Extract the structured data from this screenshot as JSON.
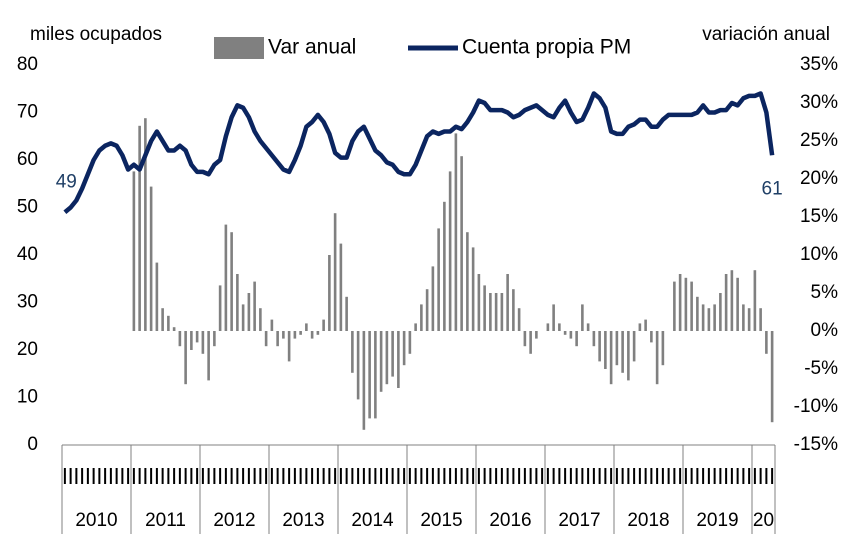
{
  "chart_data": {
    "type": "bar-line",
    "y_label": "miles ocupados",
    "y2_label": "variación anual",
    "ylim": [
      0,
      80
    ],
    "yticks": [
      0,
      10,
      20,
      30,
      40,
      50,
      60,
      70,
      80
    ],
    "y2lim": [
      -15,
      35
    ],
    "y2ticks": [
      {
        "value": -15,
        "label": "-15%"
      },
      {
        "value": -10,
        "label": "-10%"
      },
      {
        "value": -5,
        "label": "-5%"
      },
      {
        "value": 0,
        "label": "0%"
      },
      {
        "value": 5,
        "label": "5%"
      },
      {
        "value": 10,
        "label": "10%"
      },
      {
        "value": 15,
        "label": "15%"
      },
      {
        "value": 20,
        "label": "20%"
      },
      {
        "value": 25,
        "label": "25%"
      },
      {
        "value": 30,
        "label": "30%"
      },
      {
        "value": 35,
        "label": "35%"
      }
    ],
    "groups": [
      {
        "label": "2010",
        "span": 12
      },
      {
        "label": "2011",
        "span": 12
      },
      {
        "label": "2012",
        "span": 12
      },
      {
        "label": "2013",
        "span": 12
      },
      {
        "label": "2014",
        "span": 12
      },
      {
        "label": "2015",
        "span": 12
      },
      {
        "label": "2016",
        "span": 12
      },
      {
        "label": "2017",
        "span": 12
      },
      {
        "label": "2018",
        "span": 12
      },
      {
        "label": "2019",
        "span": 12
      },
      {
        "label": "20",
        "span": 4
      }
    ],
    "label_ends": true,
    "series": [
      {
        "name": "Var anual",
        "type": "bar",
        "axis": "y2",
        "color": "#808080",
        "values": [
          null,
          null,
          null,
          null,
          null,
          null,
          null,
          null,
          null,
          null,
          null,
          null,
          21,
          27,
          28,
          19,
          9,
          3,
          2,
          0.5,
          -2,
          -7,
          -2.5,
          -1.5,
          -3,
          -6.5,
          -2,
          6,
          14,
          13,
          7.5,
          3.5,
          5,
          6.5,
          3,
          -2,
          1.5,
          -2,
          -1,
          -4,
          -1,
          -0.5,
          1,
          -1,
          -0.5,
          1.5,
          10,
          15.5,
          11.5,
          4.5,
          -5.5,
          -9,
          -13,
          -11.5,
          -11.5,
          -8,
          -7,
          -6,
          -7.5,
          -4.5,
          -3,
          1,
          3.5,
          5.5,
          8.5,
          13.5,
          17,
          21,
          26,
          23,
          13,
          11,
          7.5,
          6,
          5,
          5,
          5,
          7.5,
          5.5,
          3,
          -2,
          -3,
          -1,
          0,
          1,
          3.5,
          1,
          -0.5,
          -1,
          -2,
          3.5,
          1,
          -2,
          -4,
          -5,
          -7,
          -4.5,
          -5.5,
          -6.5,
          -4,
          1,
          1.5,
          -1.5,
          -7,
          -4.5,
          0,
          6.5,
          7.5,
          7,
          6.5,
          4.5,
          3.5,
          3,
          3.5,
          5,
          7.5,
          8,
          7,
          3.5,
          3,
          8,
          3,
          -3,
          -12
        ]
      },
      {
        "name": "Cuenta propia PM",
        "type": "line",
        "axis": "y",
        "color": "#0b2560",
        "values": [
          49,
          50,
          51.5,
          54,
          57,
          60,
          62,
          63,
          63.5,
          63,
          61,
          58,
          59,
          58,
          61,
          64,
          66,
          64,
          62,
          62,
          63,
          62,
          59,
          57.5,
          57.5,
          57,
          59,
          60,
          65,
          69,
          71.5,
          71,
          69,
          66,
          64,
          62.5,
          61,
          59.5,
          58,
          57.5,
          60,
          63,
          67,
          68,
          69.5,
          68,
          65.5,
          61.5,
          60.5,
          60.5,
          64,
          66,
          67,
          64.5,
          62,
          61,
          59.5,
          59,
          57.5,
          57,
          57,
          59,
          62,
          65,
          66,
          65.5,
          66,
          66,
          67,
          66.5,
          68,
          70,
          72.5,
          72,
          70.5,
          70.5,
          70.5,
          70,
          69,
          69.5,
          70.5,
          71,
          71.5,
          70.5,
          69.5,
          69,
          71,
          72.5,
          70,
          68,
          68.5,
          71,
          74,
          73,
          71,
          66,
          65.5,
          65.5,
          67,
          67.5,
          68.5,
          68.5,
          67,
          67,
          68.5,
          69.5,
          69.5,
          69.5,
          69.5,
          69.5,
          70,
          71.5,
          70,
          70,
          70.5,
          70.5,
          72,
          71.5,
          73,
          73.5,
          73.5,
          74,
          70,
          61
        ]
      }
    ]
  }
}
